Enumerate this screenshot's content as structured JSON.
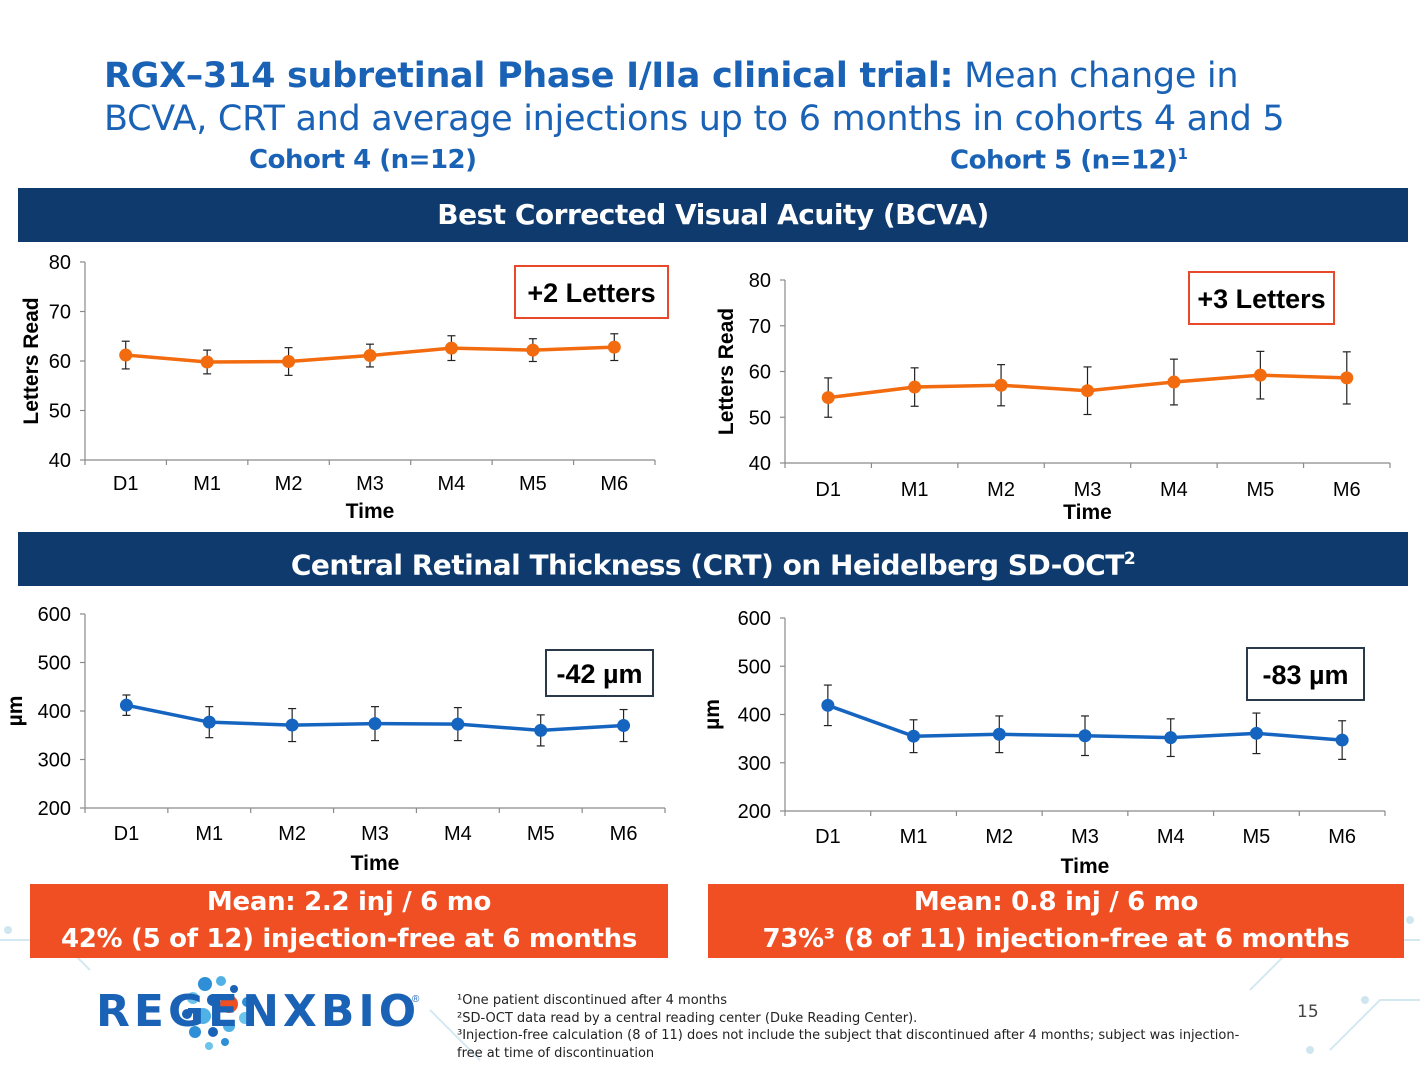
{
  "slide": {
    "title_bold": "RGX–314 subretinal Phase I/IIa clinical trial:",
    "title_rest": " Mean change in BCVA, CRT and average injections up to 6 months in cohorts 4 and 5",
    "cohort4_label": "Cohort 4 (n=12)",
    "cohort5_label": "Cohort 5 (n=12)",
    "cohort5_sup": "1",
    "band_bcva": "Best Corrected Visual Acuity (BCVA)",
    "band_crt": "Central Retinal Thickness (CRT) on Heidelberg SD-OCT",
    "band_crt_sup": "2",
    "result4_line1": "Mean: 2.2 inj  / 6 mo",
    "result4_line2": "42% (5 of 12) injection-free at 6 months",
    "result5_line1": "Mean: 0.8 inj / 6 mo",
    "result5_line2": "73%³ (8 of 11) injection-free at 6 months",
    "logo_text": "REGENXBIO",
    "logo_reg": "®",
    "footnotes": [
      "¹One patient discontinued after 4 months",
      "²SD-OCT data read by a central reading center (Duke Reading Center).",
      "³Injection-free calculation (8 of 11) does not include the subject that discontinued after 4 months; subject was injection-free at time of discontinuation"
    ],
    "page_number": "15",
    "colors": {
      "brand_blue": "#1a62b5",
      "navy": "#0e3a6e",
      "orange": "#f04e23",
      "bcva_line": "#f26b0f",
      "crt_line": "#1565c0"
    }
  },
  "chart_data": [
    {
      "id": "bcva-c4",
      "type": "line",
      "categories": [
        "D1",
        "M1",
        "M2",
        "M3",
        "M4",
        "M5",
        "M6"
      ],
      "series": [
        {
          "values": [
            61.2,
            59.8,
            59.9,
            61.1,
            62.6,
            62.2,
            62.8
          ],
          "errors": [
            2.8,
            2.4,
            2.8,
            2.3,
            2.5,
            2.3,
            2.7
          ]
        }
      ],
      "xlabel": "Time",
      "ylabel": "Letters Read",
      "ylim": [
        40,
        80
      ],
      "yticks": [
        40,
        50,
        60,
        70,
        80
      ],
      "annotation": "+2 Letters",
      "color": "#f26b0f",
      "callout_border": "#e8492a"
    },
    {
      "id": "bcva-c5",
      "type": "line",
      "categories": [
        "D1",
        "M1",
        "M2",
        "M3",
        "M4",
        "M5",
        "M6"
      ],
      "series": [
        {
          "values": [
            54.3,
            56.6,
            57.0,
            55.8,
            57.7,
            59.2,
            58.6
          ],
          "errors": [
            4.3,
            4.2,
            4.5,
            5.2,
            5.0,
            5.2,
            5.7
          ]
        }
      ],
      "xlabel": "Time",
      "ylabel": "Letters Read",
      "ylim": [
        40,
        80
      ],
      "yticks": [
        40,
        50,
        60,
        70,
        80
      ],
      "annotation": "+3 Letters",
      "color": "#f26b0f",
      "callout_border": "#e8492a"
    },
    {
      "id": "crt-c4",
      "type": "line",
      "categories": [
        "D1",
        "M1",
        "M2",
        "M3",
        "M4",
        "M5",
        "M6"
      ],
      "series": [
        {
          "values": [
            412,
            377,
            371,
            374,
            373,
            360,
            370
          ],
          "errors": [
            21,
            32,
            34,
            35,
            34,
            32,
            33
          ]
        }
      ],
      "xlabel": "Time",
      "ylabel": "µm",
      "ylim": [
        200,
        600
      ],
      "yticks": [
        200,
        300,
        400,
        500,
        600
      ],
      "annotation": "-42 µm",
      "color": "#1565c0",
      "callout_border": "#2b3a4a"
    },
    {
      "id": "crt-c5",
      "type": "line",
      "categories": [
        "D1",
        "M1",
        "M2",
        "M3",
        "M4",
        "M5",
        "M6"
      ],
      "series": [
        {
          "values": [
            419,
            355,
            359,
            356,
            352,
            361,
            347
          ],
          "errors": [
            42,
            34,
            38,
            41,
            39,
            42,
            40
          ]
        }
      ],
      "xlabel": "Time",
      "ylabel": "µm",
      "ylim": [
        200,
        600
      ],
      "yticks": [
        200,
        300,
        400,
        500,
        600
      ],
      "annotation": "-83 µm",
      "color": "#1565c0",
      "callout_border": "#2b3a4a"
    }
  ]
}
